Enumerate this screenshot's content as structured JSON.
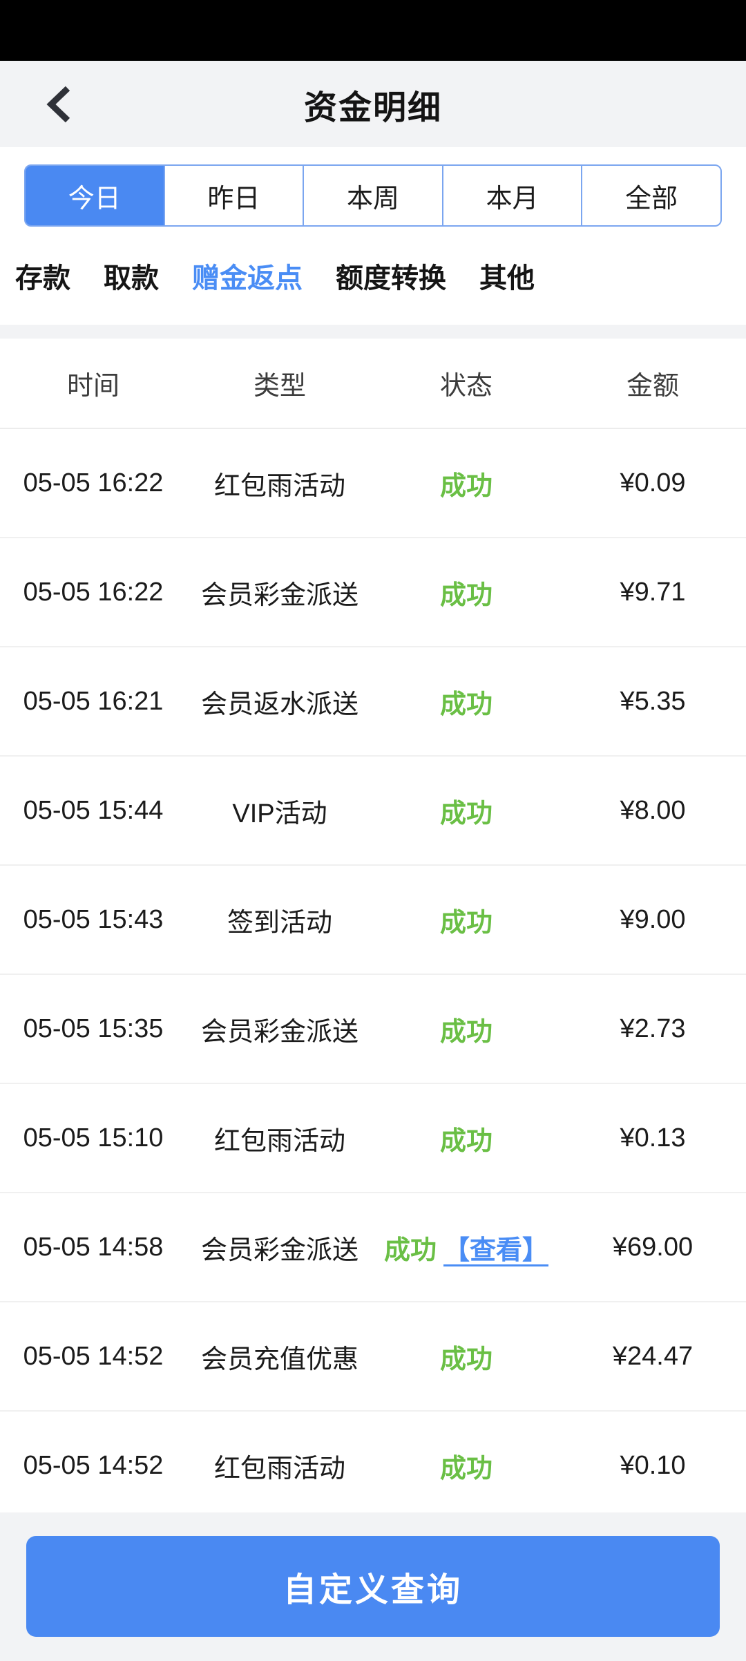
{
  "header": {
    "title": "资金明细",
    "back_icon": "chevron-left"
  },
  "colors": {
    "status_bar": "#000000",
    "header_bg": "#f2f3f5",
    "accent_blue": "#4a89f2",
    "tab_border_blue": "#7ba6f0",
    "link_blue": "#4a8df5",
    "success_green": "#6abf45"
  },
  "date_tabs": [
    {
      "key": "today",
      "label": "今日",
      "active": true
    },
    {
      "key": "yesterday",
      "label": "昨日",
      "active": false
    },
    {
      "key": "this-week",
      "label": "本周",
      "active": false
    },
    {
      "key": "this-month",
      "label": "本月",
      "active": false
    },
    {
      "key": "all",
      "label": "全部",
      "active": false
    }
  ],
  "type_filters": [
    {
      "key": "deposit",
      "label": "存款",
      "active": false
    },
    {
      "key": "withdraw",
      "label": "取款",
      "active": false
    },
    {
      "key": "bonus-rebate",
      "label": "赠金返点",
      "active": true
    },
    {
      "key": "quota-transfer",
      "label": "额度转换",
      "active": false
    },
    {
      "key": "other",
      "label": "其他",
      "active": false
    }
  ],
  "table": {
    "headers": [
      "时间",
      "类型",
      "状态",
      "金额"
    ],
    "rows": [
      {
        "time": "05-05 16:22",
        "type": "红包雨活动",
        "status": "成功",
        "link": "",
        "amount": "¥0.09"
      },
      {
        "time": "05-05 16:22",
        "type": "会员彩金派送",
        "status": "成功",
        "link": "",
        "amount": "¥9.71"
      },
      {
        "time": "05-05 16:21",
        "type": "会员返水派送",
        "status": "成功",
        "link": "",
        "amount": "¥5.35"
      },
      {
        "time": "05-05 15:44",
        "type": "VIP活动",
        "status": "成功",
        "link": "",
        "amount": "¥8.00"
      },
      {
        "time": "05-05 15:43",
        "type": "签到活动",
        "status": "成功",
        "link": "",
        "amount": "¥9.00"
      },
      {
        "time": "05-05 15:35",
        "type": "会员彩金派送",
        "status": "成功",
        "link": "",
        "amount": "¥2.73"
      },
      {
        "time": "05-05 15:10",
        "type": "红包雨活动",
        "status": "成功",
        "link": "",
        "amount": "¥0.13"
      },
      {
        "time": "05-05 14:58",
        "type": "会员彩金派送",
        "status": "成功",
        "link": "【查看】",
        "amount": "¥69.00"
      },
      {
        "time": "05-05 14:52",
        "type": "会员充值优惠",
        "status": "成功",
        "link": "",
        "amount": "¥24.47"
      },
      {
        "time": "05-05 14:52",
        "type": "红包雨活动",
        "status": "成功",
        "link": "",
        "amount": "¥0.10"
      }
    ]
  },
  "footer": {
    "query_button": "自定义查询"
  }
}
